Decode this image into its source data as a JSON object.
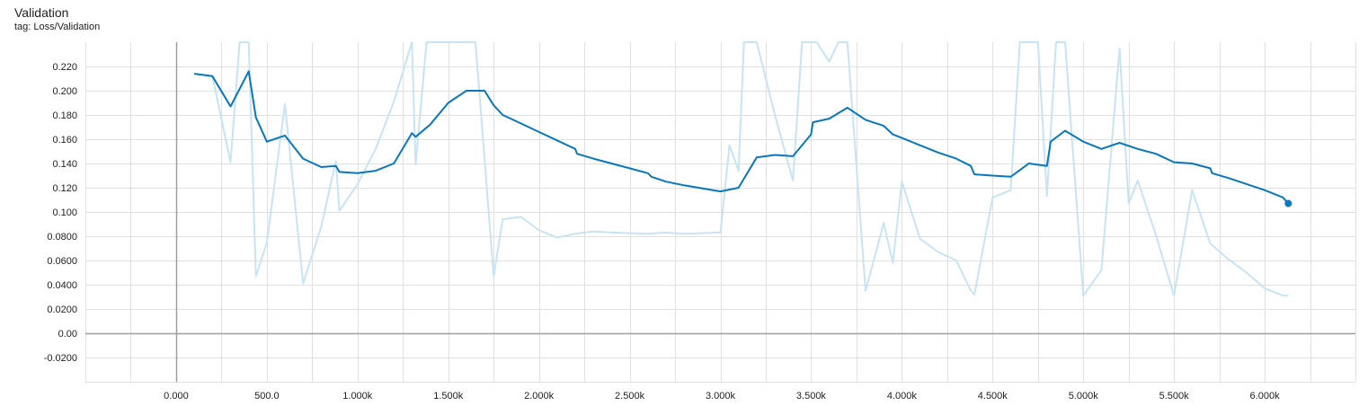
{
  "header": {
    "title": "Validation",
    "tag": "tag: Loss/Validation"
  },
  "colors": {
    "smoothed": "#0877bd",
    "raw": "#c8e4f3",
    "grid": "#e0e0e0",
    "axis": "#9e9e9e"
  },
  "chart_data": {
    "type": "line",
    "title": "Validation",
    "xlabel": "",
    "ylabel": "",
    "xlim": [
      -500,
      6500
    ],
    "ylim": [
      -0.04,
      0.24
    ],
    "grid": true,
    "x_ticks": [
      0,
      500,
      1000,
      1500,
      2000,
      2500,
      3000,
      3500,
      4000,
      4500,
      5000,
      5500,
      6000
    ],
    "x_tick_labels": [
      "0.000",
      "500.0",
      "1.000k",
      "1.500k",
      "2.000k",
      "2.500k",
      "3.000k",
      "3.500k",
      "4.000k",
      "4.500k",
      "5.000k",
      "5.500k",
      "6.000k"
    ],
    "y_ticks": [
      -0.02,
      0,
      0.02,
      0.04,
      0.06,
      0.08,
      0.1,
      0.12,
      0.14,
      0.16,
      0.18,
      0.2,
      0.22
    ],
    "y_tick_labels": [
      "-0.0200",
      "0.00",
      "0.0200",
      "0.0400",
      "0.0600",
      "0.0800",
      "0.100",
      "0.120",
      "0.140",
      "0.160",
      "0.180",
      "0.200",
      "0.220"
    ],
    "series": [
      {
        "role": "raw",
        "x": [
          100,
          200,
          300,
          350,
          400,
          440,
          500,
          600,
          700,
          800,
          880,
          900,
          1000,
          1100,
          1200,
          1300,
          1320,
          1380,
          1650,
          1750,
          1800,
          1900,
          2000,
          2100,
          2200,
          2300,
          2400,
          2600,
          2700,
          2800,
          3000,
          3050,
          3100,
          3130,
          3200,
          3300,
          3400,
          3450,
          3530,
          3600,
          3650,
          3700,
          3800,
          3900,
          3950,
          4000,
          4100,
          4200,
          4300,
          4380,
          4400,
          4500,
          4600,
          4650,
          4700,
          4750,
          4800,
          4850,
          4900,
          5000,
          5100,
          5200,
          5250,
          5300,
          5400,
          5500,
          5600,
          5700,
          5800,
          5900,
          6000,
          6100,
          6130
        ],
        "values": [
          0.214,
          0.212,
          0.141,
          0.24,
          0.24,
          0.047,
          0.075,
          0.189,
          0.041,
          0.088,
          0.142,
          0.101,
          0.123,
          0.152,
          0.191,
          0.24,
          0.139,
          0.24,
          0.24,
          0.047,
          0.094,
          0.096,
          0.085,
          0.079,
          0.082,
          0.084,
          0.083,
          0.082,
          0.083,
          0.082,
          0.083,
          0.155,
          0.134,
          0.24,
          0.24,
          0.18,
          0.126,
          0.24,
          0.24,
          0.224,
          0.24,
          0.24,
          0.035,
          0.091,
          0.058,
          0.125,
          0.078,
          0.067,
          0.06,
          0.035,
          0.032,
          0.112,
          0.118,
          0.24,
          0.24,
          0.24,
          0.113,
          0.24,
          0.24,
          0.031,
          0.052,
          0.235,
          0.107,
          0.126,
          0.081,
          0.031,
          0.118,
          0.074,
          0.061,
          0.05,
          0.037,
          0.031,
          0.031
        ]
      },
      {
        "role": "smoothed",
        "x": [
          100,
          200,
          300,
          400,
          440,
          500,
          600,
          700,
          800,
          880,
          900,
          1000,
          1100,
          1200,
          1300,
          1320,
          1400,
          1500,
          1600,
          1700,
          1750,
          1800,
          1900,
          2000,
          2100,
          2200,
          2210,
          2300,
          2400,
          2500,
          2600,
          2620,
          2700,
          2800,
          3000,
          3100,
          3200,
          3300,
          3400,
          3500,
          3510,
          3600,
          3700,
          3800,
          3900,
          3950,
          4000,
          4100,
          4200,
          4300,
          4380,
          4400,
          4500,
          4600,
          4700,
          4800,
          4820,
          4900,
          5000,
          5100,
          5200,
          5300,
          5400,
          5500,
          5600,
          5700,
          5710,
          5800,
          5900,
          6000,
          6100,
          6130
        ],
        "values": [
          0.214,
          0.212,
          0.187,
          0.216,
          0.178,
          0.158,
          0.163,
          0.144,
          0.137,
          0.138,
          0.133,
          0.132,
          0.134,
          0.14,
          0.165,
          0.162,
          0.172,
          0.19,
          0.2,
          0.2,
          0.188,
          0.18,
          0.173,
          0.166,
          0.159,
          0.152,
          0.148,
          0.144,
          0.14,
          0.136,
          0.132,
          0.129,
          0.125,
          0.122,
          0.117,
          0.12,
          0.145,
          0.147,
          0.146,
          0.164,
          0.174,
          0.177,
          0.186,
          0.176,
          0.171,
          0.164,
          0.161,
          0.155,
          0.149,
          0.144,
          0.138,
          0.131,
          0.13,
          0.129,
          0.14,
          0.138,
          0.158,
          0.167,
          0.158,
          0.152,
          0.157,
          0.152,
          0.148,
          0.141,
          0.14,
          0.136,
          0.132,
          0.128,
          0.123,
          0.118,
          0.112,
          0.107
        ]
      }
    ]
  }
}
